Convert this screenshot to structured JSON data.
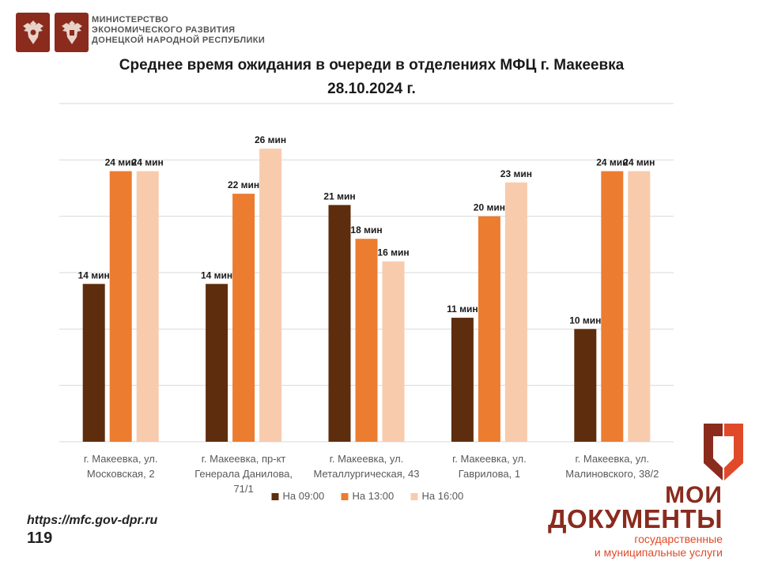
{
  "header": {
    "ministry_lines": [
      "МИНИСТЕРСТВО",
      "ЭКОНОМИЧЕСКОГО РАЗВИТИЯ",
      "ДОНЕЦКОЙ НАРОДНОЙ РЕСПУБЛИКИ"
    ]
  },
  "footer": {
    "url": "https://mfc.gov-dpr.ru",
    "page_number": "119",
    "brand_line1": "МОИ",
    "brand_line2": "ДОКУМЕНТЫ",
    "brand_sub1": "государственные",
    "brand_sub2": "и муниципальные услуги"
  },
  "colors": {
    "series": [
      "#5e2d0e",
      "#ec7c30",
      "#f8cbad"
    ],
    "grid": "#d9d9d9",
    "emblem": "#8a2b1e",
    "brand_red": "#e04a2a",
    "brand_brown": "#8a2b1e"
  },
  "chart_data": {
    "type": "bar",
    "title_lines": [
      "Среднее время ожидания в очереди в отделениях МФЦ г. Макеевка",
      "28.10.2024 г."
    ],
    "categories": [
      [
        "г. Макеевка, ул.",
        "Московская, 2"
      ],
      [
        "г. Макеевка, пр-кт",
        "Генерала Данилова,",
        "71/1"
      ],
      [
        "г. Макеевка, ул.",
        "Металлургическая, 43"
      ],
      [
        "г. Макеевка, ул.",
        "Гаврилова, 1"
      ],
      [
        "г. Макеевка, ул.",
        "Малиновского, 38/2"
      ]
    ],
    "series": [
      {
        "name": "На 09:00",
        "values": [
          14,
          14,
          21,
          11,
          10
        ]
      },
      {
        "name": "На 13:00",
        "values": [
          24,
          22,
          18,
          20,
          24
        ]
      },
      {
        "name": "На 16:00",
        "values": [
          24,
          26,
          16,
          23,
          24
        ]
      }
    ],
    "value_suffix": " мин",
    "ylim": [
      0,
      30
    ],
    "grid_step": 5,
    "grid": true,
    "legend_position": "bottom",
    "xlabel": "",
    "ylabel": ""
  }
}
